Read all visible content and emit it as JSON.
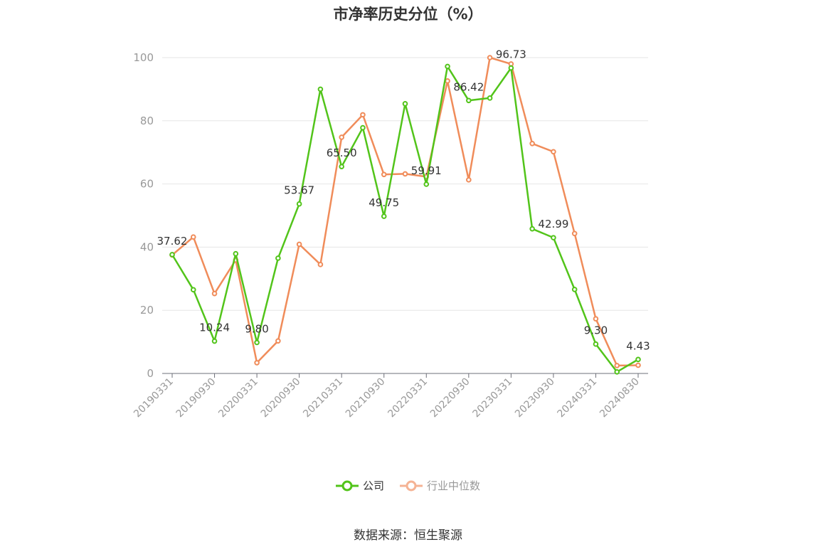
{
  "title": "市净率历史分位（%）",
  "source": "数据来源：恒生聚源",
  "legend": {
    "company": "公司",
    "industry": "行业中位数"
  },
  "colors": {
    "company": "#52c41a",
    "industry": "#f08c5a",
    "axis": "#999999",
    "grid": "#e6e6e6",
    "label": "#333333"
  },
  "chart_data": {
    "type": "line",
    "title": "市净率历史分位（%）",
    "ylim": [
      0,
      100
    ],
    "y_ticks": [
      0,
      20,
      40,
      60,
      80,
      100
    ],
    "x_tick_labels": [
      "20190331",
      "20190930",
      "20200331",
      "20200930",
      "20210331",
      "20210930",
      "20220331",
      "20220930",
      "20230331",
      "20230930",
      "20240331",
      "20240830"
    ],
    "grid": true,
    "legend_position": "bottom",
    "series": [
      {
        "name": "公司",
        "values": [
          37.62,
          26.5,
          10.24,
          37.9,
          9.8,
          36.5,
          53.67,
          90.0,
          65.5,
          77.8,
          49.75,
          85.4,
          59.91,
          97.2,
          86.42,
          87.2,
          96.73,
          45.8,
          42.99,
          26.6,
          9.3,
          0.5,
          4.43
        ],
        "data_labels": {
          "0": "37.62",
          "2": "10.24",
          "4": "9.80",
          "6": "53.67",
          "8": "65.50",
          "10": "49.75",
          "12": "59.91",
          "14": "86.42",
          "16": "96.73",
          "18": "42.99",
          "20": "9.30",
          "22": "4.43"
        }
      },
      {
        "name": "行业中位数",
        "values": [
          37.5,
          43.2,
          25.3,
          35.9,
          3.4,
          10.3,
          40.9,
          34.5,
          74.8,
          81.9,
          63.0,
          63.2,
          62.3,
          92.6,
          61.3,
          100.0,
          98.0,
          72.8,
          70.2,
          44.3,
          17.3,
          2.5,
          2.6
        ]
      }
    ]
  }
}
